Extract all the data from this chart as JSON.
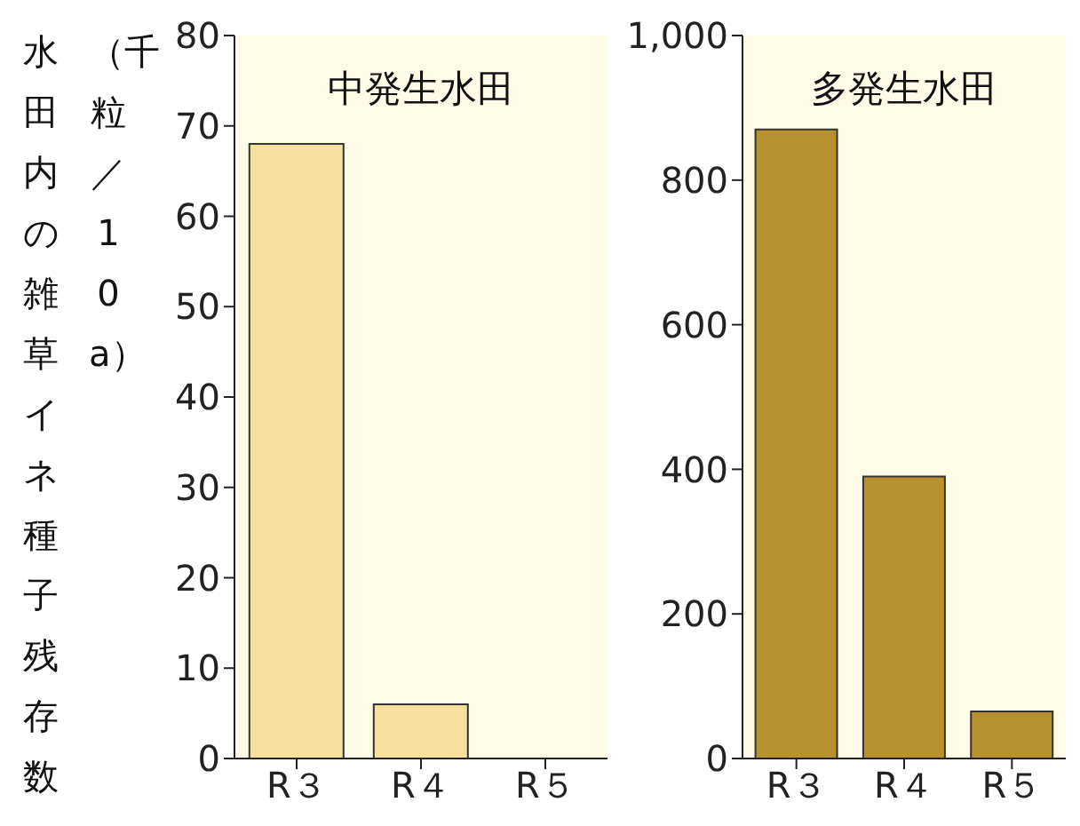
{
  "chart_data": [
    {
      "type": "bar",
      "title": "中発生水田",
      "ylabel": "水田内の雑草イネ種子残存数（千粒／10a）",
      "categories": [
        "R３",
        "R４",
        "R５"
      ],
      "values": [
        68,
        6,
        0
      ],
      "color": "#f7e09b",
      "ylim": [
        0,
        80
      ],
      "yticks": [
        0,
        10,
        20,
        30,
        40,
        50,
        60,
        70,
        80
      ]
    },
    {
      "type": "bar",
      "title": "多発生水田",
      "categories": [
        "R３",
        "R４",
        "R５"
      ],
      "values": [
        870,
        390,
        65
      ],
      "color": "#b8912f",
      "ylim": [
        0,
        1000
      ],
      "yticks": [
        0,
        200,
        400,
        600,
        800,
        {
          "value": 1000,
          "label": "1,000"
        }
      ]
    }
  ]
}
